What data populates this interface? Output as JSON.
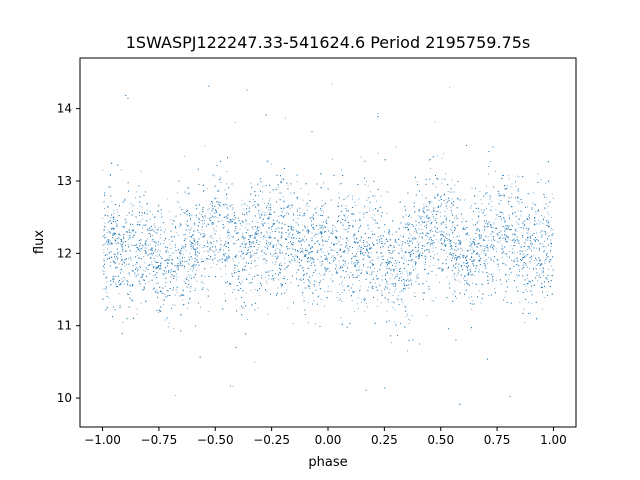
{
  "chart_data": {
    "type": "scatter",
    "title": "1SWASPJ122247.33-541624.6 Period 2195759.75s",
    "xlabel": "phase",
    "ylabel": "flux",
    "xlim": [
      -1.1,
      1.1
    ],
    "ylim": [
      9.6,
      14.7
    ],
    "xticks": [
      -1.0,
      -0.75,
      -0.5,
      -0.25,
      0.0,
      0.25,
      0.5,
      0.75,
      1.0
    ],
    "xtick_labels": [
      "−1.00",
      "−0.75",
      "−0.50",
      "−0.25",
      "0.00",
      "0.25",
      "0.50",
      "0.75",
      "1.00"
    ],
    "yticks": [
      10,
      11,
      12,
      13,
      14
    ],
    "ytick_labels": [
      "10",
      "11",
      "12",
      "13",
      "14"
    ],
    "grid": false,
    "marker_color": "#1f77b4",
    "series": [
      {
        "phase_range": [
          -1.0,
          1.0
        ],
        "median_flux": 12.1,
        "typical_flux_range": [
          11.3,
          12.9
        ],
        "extreme_flux_range": [
          9.9,
          14.5
        ],
        "profile": [
          {
            "phase": -1.0,
            "flux": 12.2
          },
          {
            "phase": -0.9,
            "flux": 12.0
          },
          {
            "phase": -0.8,
            "flux": 12.1
          },
          {
            "phase": -0.7,
            "flux": 11.8
          },
          {
            "phase": -0.6,
            "flux": 12.1
          },
          {
            "phase": -0.5,
            "flux": 12.4
          },
          {
            "phase": -0.4,
            "flux": 12.0
          },
          {
            "phase": -0.3,
            "flux": 12.2
          },
          {
            "phase": -0.2,
            "flux": 12.3
          },
          {
            "phase": -0.1,
            "flux": 12.0
          },
          {
            "phase": 0.0,
            "flux": 12.2
          },
          {
            "phase": 0.1,
            "flux": 12.0
          },
          {
            "phase": 0.2,
            "flux": 12.1
          },
          {
            "phase": 0.3,
            "flux": 11.8
          },
          {
            "phase": 0.4,
            "flux": 12.1
          },
          {
            "phase": 0.5,
            "flux": 12.4
          },
          {
            "phase": 0.6,
            "flux": 12.0
          },
          {
            "phase": 0.7,
            "flux": 12.2
          },
          {
            "phase": 0.8,
            "flux": 12.3
          },
          {
            "phase": 0.9,
            "flux": 12.0
          },
          {
            "phase": 1.0,
            "flux": 12.2
          }
        ]
      }
    ]
  }
}
